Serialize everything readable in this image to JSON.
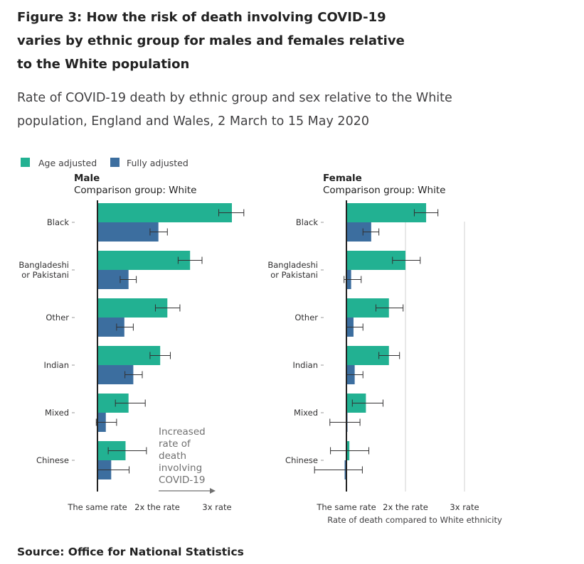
{
  "header": {
    "title": "Figure 3: How the risk of death involving COVID-19 varies by ethnic group for males and females relative to the White population",
    "subtitle": "Rate of COVID-19 death by ethnic group and sex relative to the White population, England and Wales, 2 March to 15 May 2020"
  },
  "footer": {
    "source": "Source: Office for National Statistics"
  },
  "colors": {
    "age_adjusted": "#22b192",
    "fully_adjusted": "#3c6e9f",
    "axis": "#222222",
    "grid": "#d0d0d0",
    "error": "#323132",
    "muted": "#707070"
  },
  "chart_data": [
    {
      "type": "bar",
      "orientation": "horizontal",
      "panel_title": "Male",
      "panel_subtitle": "Comparison group: White",
      "categories": [
        "Black",
        "Bangladeshi or Pakistani",
        "Other",
        "Indian",
        "Mixed",
        "Chinese"
      ],
      "category_lines": [
        [
          "Black"
        ],
        [
          "Bangladeshi",
          "or Pakistani"
        ],
        [
          "Other"
        ],
        [
          "Indian"
        ],
        [
          "Mixed"
        ],
        [
          "Chinese"
        ]
      ],
      "xlim": [
        1,
        3.05
      ],
      "xticks": [
        {
          "value": 1,
          "label": "The same rate"
        },
        {
          "value": 2,
          "label": "2x the rate"
        },
        {
          "value": 3,
          "label": "3x rate"
        }
      ],
      "legend": [
        {
          "name": "Age adjusted"
        },
        {
          "name": "Fully adjusted"
        }
      ],
      "legend_position": "top-left",
      "annotation": {
        "lines": [
          "Increased",
          "rate of",
          "death",
          "involving",
          "COVID-19"
        ],
        "arrow": "right"
      },
      "series": [
        {
          "name": "Age adjusted",
          "values": [
            3.25,
            2.55,
            2.17,
            2.05,
            1.52,
            1.47
          ],
          "lower": [
            3.03,
            2.35,
            1.97,
            1.88,
            1.3,
            1.18
          ],
          "upper": [
            3.45,
            2.75,
            2.38,
            2.22,
            1.8,
            1.82
          ]
        },
        {
          "name": "Fully adjusted",
          "values": [
            2.02,
            1.52,
            1.45,
            1.6,
            1.14,
            1.23
          ],
          "lower": [
            1.88,
            1.38,
            1.32,
            1.46,
            0.98,
            1.0
          ],
          "upper": [
            2.17,
            1.65,
            1.6,
            1.75,
            1.32,
            1.53
          ]
        }
      ]
    },
    {
      "type": "bar",
      "orientation": "horizontal",
      "panel_title": "Female",
      "panel_subtitle": "Comparison group: White",
      "categories": [
        "Black",
        "Bangladeshi or Pakistani",
        "Other",
        "Indian",
        "Mixed",
        "Chinese"
      ],
      "category_lines": [
        [
          "Black"
        ],
        [
          "Bangladeshi",
          "or Pakistani"
        ],
        [
          "Other"
        ],
        [
          "Indian"
        ],
        [
          "Mixed"
        ],
        [
          "Chinese"
        ]
      ],
      "xlim": [
        1,
        3.05
      ],
      "xticks": [
        {
          "value": 1,
          "label": "The same rate"
        },
        {
          "value": 2,
          "label": "2x the rate"
        },
        {
          "value": 3,
          "label": "3x rate"
        }
      ],
      "xlabel": "Rate of death compared to White ethnicity",
      "grid": true,
      "series": [
        {
          "name": "Age adjusted",
          "values": [
            2.35,
            2.0,
            1.72,
            1.72,
            1.33,
            1.05
          ],
          "lower": [
            2.15,
            1.78,
            1.5,
            1.55,
            1.1,
            0.73
          ],
          "upper": [
            2.55,
            2.25,
            1.96,
            1.9,
            1.62,
            1.38
          ]
        },
        {
          "name": "Fully adjusted",
          "values": [
            1.42,
            1.08,
            1.12,
            1.14,
            1.0,
            0.97
          ],
          "lower": [
            1.28,
            0.96,
            1.0,
            1.0,
            0.72,
            0.46
          ],
          "upper": [
            1.55,
            1.25,
            1.28,
            1.28,
            1.23,
            1.27
          ]
        }
      ]
    }
  ]
}
